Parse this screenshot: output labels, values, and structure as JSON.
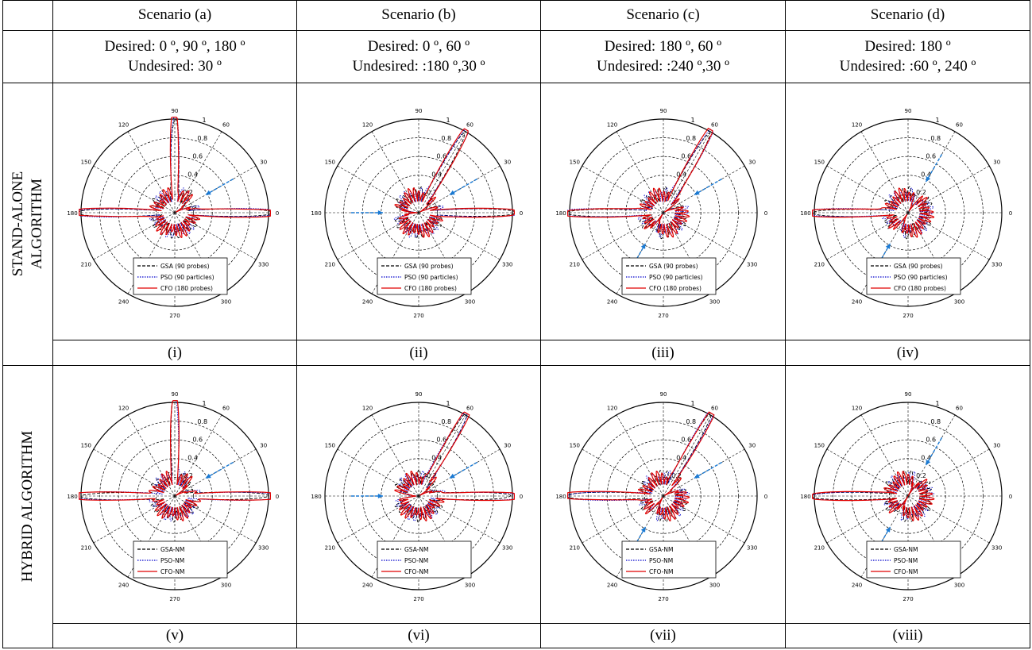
{
  "scenarios": [
    {
      "name": "Scenario (a)",
      "desired": "Desired: 0 º, 90 º, 180 º",
      "undesired": "Undesired: 30 º"
    },
    {
      "name": "Scenario (b)",
      "desired": "Desired: 0 º, 60 º",
      "undesired": "Undesired: :180 º,30 º"
    },
    {
      "name": "Scenario (c)",
      "desired": "Desired: 180 º, 60 º",
      "undesired": "Undesired: :240 º,30 º"
    },
    {
      "name": "Scenario (d)",
      "desired": "Desired: 180 º",
      "undesired": "Undesired: :60 º, 240 º"
    }
  ],
  "rows": [
    {
      "label_line1": "STAND-ALONE",
      "label_line2": "ALGORITHM",
      "captions": [
        "(i)",
        "(ii)",
        "(iii)",
        "(iv)"
      ],
      "legend": [
        "GSA (90 probes)",
        "PSO (90 particles)",
        "CFO (180 probes)"
      ]
    },
    {
      "label_line1": "HYBRID ALGORITHM",
      "label_line2": "",
      "captions": [
        "(v)",
        "(vi)",
        "(vii)",
        "(viii)"
      ],
      "legend": [
        "GSA-NM",
        "PSO-NM",
        "CFO-NM"
      ]
    }
  ],
  "polar_axis": {
    "angle_labels": [
      "0",
      "30",
      "60",
      "90",
      "120",
      "150",
      "180",
      "210",
      "240",
      "270",
      "300",
      "330"
    ],
    "radial_labels": [
      "0.2",
      "0.4",
      "0.6",
      "0.8",
      "1"
    ]
  },
  "colors": {
    "gsa": "#000000",
    "pso": "#0000cc",
    "cfo": "#e00000",
    "arrow": "#1a7ad4",
    "grid": "#000000"
  },
  "chart_data": [
    {
      "type": "polar",
      "panel": "(i)",
      "main_lobes_deg": [
        0,
        90,
        180
      ],
      "null_arrows_deg": [
        30
      ],
      "series": [
        "GSA (90 probes)",
        "PSO (90 particles)",
        "CFO (180 probes)"
      ]
    },
    {
      "type": "polar",
      "panel": "(ii)",
      "main_lobes_deg": [
        0,
        60
      ],
      "null_arrows_deg": [
        30,
        180
      ],
      "series": [
        "GSA (90 probes)",
        "PSO (90 particles)",
        "CFO (180 probes)"
      ]
    },
    {
      "type": "polar",
      "panel": "(iii)",
      "main_lobes_deg": [
        60,
        180
      ],
      "null_arrows_deg": [
        30,
        240
      ],
      "series": [
        "GSA (90 probes)",
        "PSO (90 particles)",
        "CFO (180 probes)"
      ]
    },
    {
      "type": "polar",
      "panel": "(iv)",
      "main_lobes_deg": [
        180
      ],
      "null_arrows_deg": [
        60,
        240
      ],
      "series": [
        "GSA (90 probes)",
        "PSO (90 particles)",
        "CFO (180 probes)"
      ]
    },
    {
      "type": "polar",
      "panel": "(v)",
      "main_lobes_deg": [
        0,
        90,
        180
      ],
      "null_arrows_deg": [
        30
      ],
      "series": [
        "GSA-NM",
        "PSO-NM",
        "CFO-NM"
      ]
    },
    {
      "type": "polar",
      "panel": "(vi)",
      "main_lobes_deg": [
        0,
        60
      ],
      "null_arrows_deg": [
        30,
        180
      ],
      "series": [
        "GSA-NM",
        "PSO-NM",
        "CFO-NM"
      ]
    },
    {
      "type": "polar",
      "panel": "(vii)",
      "main_lobes_deg": [
        60,
        180
      ],
      "null_arrows_deg": [
        30,
        240
      ],
      "series": [
        "GSA-NM",
        "PSO-NM",
        "CFO-NM"
      ]
    },
    {
      "type": "polar",
      "panel": "(viii)",
      "main_lobes_deg": [
        180
      ],
      "null_arrows_deg": [
        60,
        240
      ],
      "series": [
        "GSA-NM",
        "PSO-NM",
        "CFO-NM"
      ]
    }
  ]
}
